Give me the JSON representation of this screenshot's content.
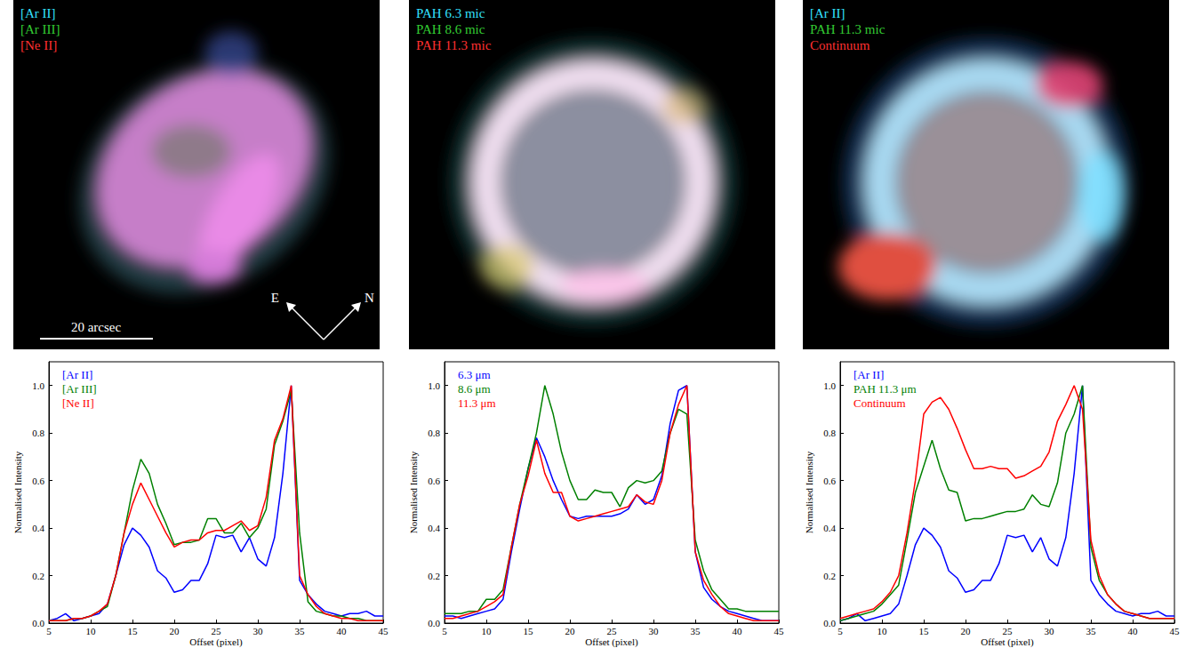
{
  "images": [
    {
      "labels": [
        {
          "text": "[Ar II]",
          "color": "#33e0ff"
        },
        {
          "text": "[Ar III]",
          "color": "#33cc33"
        },
        {
          "text": "[Ne II]",
          "color": "#ff3030"
        }
      ],
      "scale_bar": "20 arcsec",
      "compass": [
        "E",
        "N"
      ]
    },
    {
      "labels": [
        {
          "text": "PAH 6.3 mic",
          "color": "#33e0ff"
        },
        {
          "text": "PAH 8.6 mic",
          "color": "#33cc33"
        },
        {
          "text": "PAH 11.3 mic",
          "color": "#ff3030"
        }
      ]
    },
    {
      "labels": [
        {
          "text": "[Ar II]",
          "color": "#33e0ff"
        },
        {
          "text": "PAH 11.3 mic",
          "color": "#33cc33"
        },
        {
          "text": "Continuum",
          "color": "#ff3030"
        }
      ]
    }
  ],
  "chart_data": [
    {
      "type": "line",
      "x_label": "Offset (pixel)",
      "y_label": "Normalised Intensity",
      "x": [
        5,
        6,
        7,
        8,
        9,
        10,
        11,
        12,
        13,
        14,
        15,
        16,
        17,
        18,
        19,
        20,
        21,
        22,
        23,
        24,
        25,
        26,
        27,
        28,
        29,
        30,
        31,
        32,
        33,
        34,
        35,
        36,
        37,
        38,
        39,
        40,
        41,
        42,
        43,
        44,
        45
      ],
      "xlim": [
        5,
        45
      ],
      "xticks": [
        5,
        10,
        15,
        20,
        25,
        30,
        35,
        40,
        45
      ],
      "ylim": [
        0,
        1.1
      ],
      "yticks": [
        {
          "value": 0,
          "label": "0.0"
        },
        {
          "value": 0.2,
          "label": "0.2"
        },
        {
          "value": 0.4,
          "label": "0.4"
        },
        {
          "value": 0.6,
          "label": "0.6"
        },
        {
          "value": 0.8,
          "label": "0.8"
        },
        {
          "value": 1,
          "label": "1.0"
        }
      ],
      "grid": false,
      "legend": "upper left",
      "series": [
        {
          "name": "[Ar II]",
          "color": "#0000ff",
          "values": [
            0.01,
            0.02,
            0.04,
            0.01,
            0.02,
            0.03,
            0.04,
            0.08,
            0.2,
            0.33,
            0.4,
            0.37,
            0.32,
            0.22,
            0.19,
            0.13,
            0.14,
            0.18,
            0.18,
            0.25,
            0.37,
            0.36,
            0.37,
            0.3,
            0.36,
            0.27,
            0.24,
            0.36,
            0.63,
            1.0,
            0.18,
            0.12,
            0.08,
            0.05,
            0.04,
            0.03,
            0.04,
            0.04,
            0.05,
            0.03,
            0.03
          ]
        },
        {
          "name": "[Ar III]",
          "color": "#008000",
          "values": [
            0.01,
            0.01,
            0.01,
            0.02,
            0.02,
            0.03,
            0.05,
            0.07,
            0.2,
            0.38,
            0.56,
            0.69,
            0.63,
            0.5,
            0.42,
            0.33,
            0.34,
            0.34,
            0.35,
            0.44,
            0.44,
            0.38,
            0.38,
            0.42,
            0.36,
            0.4,
            0.48,
            0.75,
            0.85,
            0.98,
            0.38,
            0.09,
            0.05,
            0.04,
            0.03,
            0.03,
            0.02,
            0.02,
            0.01,
            0.01,
            0.01
          ]
        },
        {
          "name": "[Ne II]",
          "color": "#ff0000",
          "values": [
            0.01,
            0.01,
            0.01,
            0.02,
            0.02,
            0.03,
            0.05,
            0.08,
            0.2,
            0.38,
            0.5,
            0.59,
            0.52,
            0.45,
            0.38,
            0.32,
            0.34,
            0.35,
            0.35,
            0.38,
            0.39,
            0.39,
            0.41,
            0.43,
            0.39,
            0.41,
            0.53,
            0.77,
            0.86,
            1.0,
            0.2,
            0.12,
            0.07,
            0.04,
            0.03,
            0.02,
            0.02,
            0.01,
            0.01,
            0.01,
            0.01
          ]
        }
      ]
    },
    {
      "type": "line",
      "x_label": "Offset (pixel)",
      "y_label": "Normalised Intensity",
      "x": [
        5,
        6,
        7,
        8,
        9,
        10,
        11,
        12,
        13,
        14,
        15,
        16,
        17,
        18,
        19,
        20,
        21,
        22,
        23,
        24,
        25,
        26,
        27,
        28,
        29,
        30,
        31,
        32,
        33,
        34,
        35,
        36,
        37,
        38,
        39,
        40,
        41,
        42,
        43,
        44,
        45
      ],
      "xlim": [
        5,
        45
      ],
      "xticks": [
        5,
        10,
        15,
        20,
        25,
        30,
        35,
        40,
        45
      ],
      "ylim": [
        0,
        1.1
      ],
      "yticks": [
        {
          "value": 0,
          "label": "0.0"
        },
        {
          "value": 0.2,
          "label": "0.2"
        },
        {
          "value": 0.4,
          "label": "0.4"
        },
        {
          "value": 0.6,
          "label": "0.6"
        },
        {
          "value": 0.8,
          "label": "0.8"
        },
        {
          "value": 1,
          "label": "1.0"
        }
      ],
      "grid": false,
      "legend": "upper left",
      "series": [
        {
          "name": "6.3 μm",
          "color": "#0000ff",
          "values": [
            0.03,
            0.03,
            0.02,
            0.03,
            0.04,
            0.05,
            0.06,
            0.1,
            0.3,
            0.48,
            0.65,
            0.78,
            0.7,
            0.6,
            0.52,
            0.45,
            0.44,
            0.45,
            0.45,
            0.45,
            0.45,
            0.46,
            0.48,
            0.54,
            0.5,
            0.52,
            0.62,
            0.84,
            0.98,
            1.0,
            0.3,
            0.15,
            0.1,
            0.07,
            0.05,
            0.04,
            0.03,
            0.02,
            0.01,
            0.01,
            0.01
          ]
        },
        {
          "name": "8.6 μm",
          "color": "#008000",
          "values": [
            0.04,
            0.04,
            0.04,
            0.05,
            0.05,
            0.1,
            0.1,
            0.14,
            0.32,
            0.5,
            0.65,
            0.8,
            1.0,
            0.88,
            0.72,
            0.6,
            0.52,
            0.52,
            0.56,
            0.55,
            0.55,
            0.49,
            0.57,
            0.6,
            0.59,
            0.6,
            0.64,
            0.8,
            0.9,
            0.88,
            0.35,
            0.22,
            0.14,
            0.1,
            0.06,
            0.06,
            0.05,
            0.05,
            0.05,
            0.05,
            0.05
          ]
        },
        {
          "name": "11.3 μm",
          "color": "#ff0000",
          "values": [
            0.02,
            0.02,
            0.03,
            0.04,
            0.05,
            0.07,
            0.09,
            0.12,
            0.32,
            0.5,
            0.62,
            0.77,
            0.63,
            0.55,
            0.55,
            0.45,
            0.43,
            0.44,
            0.45,
            0.46,
            0.47,
            0.48,
            0.49,
            0.54,
            0.51,
            0.5,
            0.6,
            0.8,
            0.92,
            1.0,
            0.3,
            0.18,
            0.12,
            0.07,
            0.04,
            0.03,
            0.02,
            0.01,
            0.01,
            0.01,
            0.01
          ]
        }
      ]
    },
    {
      "type": "line",
      "x_label": "Offset (pixel)",
      "y_label": "Normalised Intensity",
      "x": [
        5,
        6,
        7,
        8,
        9,
        10,
        11,
        12,
        13,
        14,
        15,
        16,
        17,
        18,
        19,
        20,
        21,
        22,
        23,
        24,
        25,
        26,
        27,
        28,
        29,
        30,
        31,
        32,
        33,
        34,
        35,
        36,
        37,
        38,
        39,
        40,
        41,
        42,
        43,
        44,
        45
      ],
      "xlim": [
        5,
        45
      ],
      "xticks": [
        5,
        10,
        15,
        20,
        25,
        30,
        35,
        40,
        45
      ],
      "ylim": [
        0,
        1.1
      ],
      "yticks": [
        {
          "value": 0,
          "label": "0.0"
        },
        {
          "value": 0.2,
          "label": "0.2"
        },
        {
          "value": 0.4,
          "label": "0.4"
        },
        {
          "value": 0.6,
          "label": "0.6"
        },
        {
          "value": 0.8,
          "label": "0.8"
        },
        {
          "value": 1,
          "label": "1.0"
        }
      ],
      "grid": false,
      "legend": "upper left",
      "series": [
        {
          "name": "[Ar II]",
          "color": "#0000ff",
          "values": [
            0.01,
            0.02,
            0.04,
            0.01,
            0.02,
            0.03,
            0.04,
            0.08,
            0.2,
            0.33,
            0.4,
            0.37,
            0.32,
            0.22,
            0.19,
            0.13,
            0.14,
            0.18,
            0.18,
            0.25,
            0.37,
            0.36,
            0.37,
            0.3,
            0.36,
            0.27,
            0.24,
            0.36,
            0.63,
            1.0,
            0.18,
            0.12,
            0.08,
            0.05,
            0.04,
            0.03,
            0.04,
            0.04,
            0.05,
            0.03,
            0.03
          ]
        },
        {
          "name": "PAH 11.3 μm",
          "color": "#008000",
          "values": [
            0.01,
            0.02,
            0.03,
            0.04,
            0.05,
            0.08,
            0.12,
            0.16,
            0.35,
            0.55,
            0.66,
            0.77,
            0.65,
            0.56,
            0.55,
            0.43,
            0.44,
            0.44,
            0.45,
            0.46,
            0.47,
            0.47,
            0.48,
            0.54,
            0.5,
            0.49,
            0.59,
            0.8,
            0.88,
            1.0,
            0.32,
            0.18,
            0.12,
            0.08,
            0.05,
            0.04,
            0.03,
            0.02,
            0.02,
            0.02,
            0.02
          ]
        },
        {
          "name": "Continuum",
          "color": "#ff0000",
          "values": [
            0.02,
            0.03,
            0.04,
            0.05,
            0.06,
            0.09,
            0.13,
            0.2,
            0.38,
            0.6,
            0.88,
            0.93,
            0.95,
            0.9,
            0.82,
            0.73,
            0.65,
            0.65,
            0.66,
            0.65,
            0.65,
            0.61,
            0.62,
            0.64,
            0.66,
            0.72,
            0.85,
            0.92,
            1.0,
            0.9,
            0.35,
            0.2,
            0.12,
            0.08,
            0.05,
            0.04,
            0.03,
            0.02,
            0.02,
            0.02,
            0.02
          ]
        }
      ]
    }
  ]
}
